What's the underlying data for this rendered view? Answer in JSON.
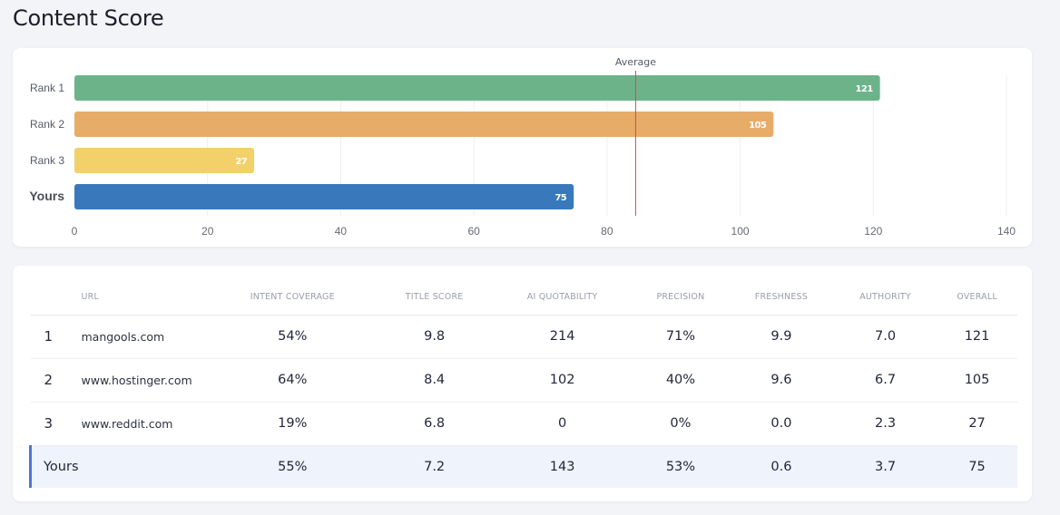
{
  "page": {
    "title": "Content Score"
  },
  "chart_data": {
    "type": "bar",
    "orientation": "horizontal",
    "categories": [
      "Rank 1",
      "Rank 2",
      "Rank 3",
      "Yours"
    ],
    "values": [
      121,
      105,
      27,
      75
    ],
    "bar_labels": [
      "121",
      "105",
      "27",
      "75"
    ],
    "colors": [
      "#6db389",
      "#e8ac69",
      "#f2d16b",
      "#3979bb"
    ],
    "xlim": [
      0,
      140
    ],
    "x_ticks": [
      0,
      20,
      40,
      60,
      80,
      100,
      120,
      140
    ],
    "x_tick_labels": [
      "0",
      "20",
      "40",
      "60",
      "80",
      "100",
      "120",
      "140"
    ],
    "grid": true,
    "reference_line": {
      "label": "Average",
      "value": 84.3,
      "color": "#e0405a"
    },
    "title": "",
    "xlabel": "",
    "ylabel": ""
  },
  "table": {
    "headers": [
      "",
      "URL",
      "INTENT COVERAGE",
      "TITLE SCORE",
      "AI QUOTABILITY",
      "PRECISION",
      "FRESHNESS",
      "AUTHORITY",
      "OVERALL"
    ],
    "rows": [
      {
        "rank": "1",
        "url": "mangools.com",
        "intent_coverage": "54%",
        "title_score": "9.8",
        "ai_quotability": "214",
        "precision": "71%",
        "freshness": "9.9",
        "authority": "7.0",
        "overall": "121"
      },
      {
        "rank": "2",
        "url": "www.hostinger.com",
        "intent_coverage": "64%",
        "title_score": "8.4",
        "ai_quotability": "102",
        "precision": "40%",
        "freshness": "9.6",
        "authority": "6.7",
        "overall": "105"
      },
      {
        "rank": "3",
        "url": "www.reddit.com",
        "intent_coverage": "19%",
        "title_score": "6.8",
        "ai_quotability": "0",
        "precision": "0%",
        "freshness": "0.0",
        "authority": "2.3",
        "overall": "27"
      }
    ],
    "yours": {
      "label": "Yours",
      "intent_coverage": "55%",
      "title_score": "7.2",
      "ai_quotability": "143",
      "precision": "53%",
      "freshness": "0.6",
      "authority": "3.7",
      "overall": "75"
    },
    "highlight_color": "#4f74d9"
  }
}
